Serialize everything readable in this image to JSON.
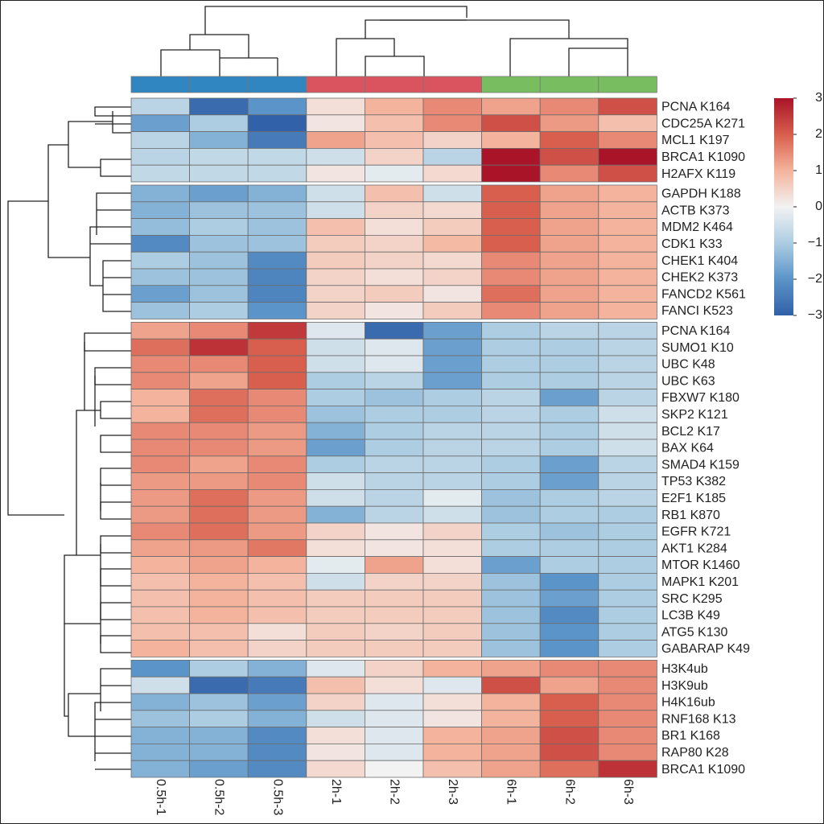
{
  "chart_data": {
    "type": "heatmap",
    "columns": [
      "0.5h-1",
      "0.5h-2",
      "0.5h-3",
      "2h-1",
      "2h-2",
      "2h-3",
      "6h-1",
      "6h-2",
      "6h-3"
    ],
    "column_colors": [
      "#2f86c0",
      "#2f86c0",
      "#2f86c0",
      "#d9545f",
      "#d9545f",
      "#d9545f",
      "#78bd5f",
      "#78bd5f",
      "#78bd5f"
    ],
    "rows": [
      "PCNA K164",
      "CDC25A K271",
      "MCL1 K197",
      "BRCA1 K1090",
      "H2AFX K119",
      "GAPDH K188",
      "ACTB K373",
      "MDM2 K464",
      "CDK1 K33",
      "CHEK1 K404",
      "CHEK2 K373",
      "FANCD2 K561",
      "FANCI K523",
      "PCNA K164",
      "SUMO1 K10",
      "UBC K48",
      "UBC K63",
      "FBXW7 K180",
      "SKP2 K121",
      "BCL2 K17",
      "BAX K64",
      "SMAD4 K159",
      "TP53 K382",
      "E2F1 K185",
      "RB1 K870",
      "EGFR K721",
      "AKT1 K284",
      "MTOR K1460",
      "MAPK1 K201",
      "SRC K295",
      "LC3B K49",
      "ATG5 K130",
      "GABARAP K49",
      "H3K4ub",
      "H3K9ub",
      "H4K16ub",
      "RNF168 K13",
      "BR1 K168",
      "RAP80 K28",
      "BRCA1 K1090"
    ],
    "values": [
      [
        -0.8,
        -2.8,
        -2,
        0.3,
        1,
        1.5,
        1.2,
        1.5,
        2.2
      ],
      [
        -1.8,
        -1,
        -3,
        0.2,
        0.8,
        1.5,
        2.2,
        1.3,
        0.8
      ],
      [
        -0.8,
        -1.5,
        -2.5,
        1.2,
        0.8,
        0.5,
        1,
        2,
        1.5
      ],
      [
        -0.8,
        -0.7,
        -0.7,
        -0.5,
        0.5,
        -0.8,
        3,
        2.2,
        3
      ],
      [
        -0.7,
        -0.7,
        -0.7,
        0.2,
        -0.2,
        0.4,
        3,
        1.5,
        2.2
      ],
      [
        -1.5,
        -1.8,
        -1.5,
        -0.5,
        0.8,
        -0.5,
        2,
        1.2,
        1
      ],
      [
        -1.5,
        -1.2,
        -1.2,
        -0.5,
        0.5,
        0.4,
        2,
        1.2,
        1
      ],
      [
        -1.3,
        -1,
        -1.2,
        0.8,
        0.3,
        0.6,
        2,
        1.2,
        1
      ],
      [
        -2.2,
        -1.2,
        -1.2,
        0.6,
        0.5,
        0.9,
        2,
        1.2,
        1
      ],
      [
        -1,
        -1.2,
        -2.2,
        0.6,
        0.5,
        0.4,
        1.5,
        1.2,
        1
      ],
      [
        -1.2,
        -1.2,
        -2.3,
        0.5,
        0.3,
        0.5,
        1.5,
        1.2,
        1
      ],
      [
        -1.8,
        -1.2,
        -2.3,
        0.5,
        0.6,
        0.2,
        1.8,
        1.2,
        1
      ],
      [
        -1.2,
        -1,
        -2,
        0.5,
        0.2,
        0.6,
        1.5,
        1.2,
        1
      ],
      [
        1.2,
        1.5,
        2.5,
        -0.3,
        -2.8,
        -1.8,
        -1,
        -0.8,
        -0.8
      ],
      [
        1.8,
        2.6,
        2,
        -0.5,
        -0.3,
        -1.8,
        -1,
        -1,
        -0.8
      ],
      [
        1.5,
        1.5,
        2,
        -0.5,
        -0.3,
        -1.8,
        -1,
        -1,
        -0.8
      ],
      [
        1.5,
        1.2,
        2,
        -1,
        -0.8,
        -1.8,
        -1,
        -1,
        -0.8
      ],
      [
        1,
        1.8,
        1.5,
        -1,
        -1.2,
        -1,
        -0.8,
        -1.8,
        -0.8
      ],
      [
        1,
        1.8,
        1.5,
        -1.2,
        -1,
        -1,
        -0.8,
        -1,
        -0.5
      ],
      [
        1.5,
        1.5,
        1.3,
        -1.5,
        -1,
        -0.8,
        -0.8,
        -1,
        -0.5
      ],
      [
        1.5,
        1.5,
        1.3,
        -1.8,
        -1,
        -0.8,
        -0.8,
        -1,
        -0.5
      ],
      [
        1.5,
        1.2,
        1.5,
        -1,
        -0.8,
        -0.8,
        -1,
        -1.8,
        -0.8
      ],
      [
        1.3,
        1.3,
        1.5,
        -0.5,
        -0.8,
        -0.8,
        -1,
        -1.8,
        -0.8
      ],
      [
        1.3,
        1.8,
        1.3,
        -0.5,
        -0.8,
        -0.2,
        -1.2,
        -1,
        -0.8
      ],
      [
        1.3,
        1.8,
        1.3,
        -1.5,
        -0.8,
        -0.5,
        -1.2,
        -1,
        -1
      ],
      [
        1.5,
        1.8,
        1.3,
        0.5,
        0.2,
        0.5,
        -1,
        -1.2,
        -1
      ],
      [
        1.2,
        1.3,
        1.7,
        0.3,
        0.2,
        0.3,
        -1,
        -1,
        -1
      ],
      [
        1,
        1.2,
        1,
        -0.2,
        1.2,
        0.3,
        -1.8,
        -1,
        -1
      ],
      [
        0.8,
        1,
        0.8,
        -0.5,
        0.5,
        0.5,
        -1.2,
        -2,
        -1
      ],
      [
        0.8,
        1,
        0.8,
        0.6,
        0.6,
        0.6,
        -1.2,
        -1.8,
        -1
      ],
      [
        0.8,
        1,
        0.8,
        0.6,
        0.6,
        0.6,
        -1.2,
        -2.2,
        -1
      ],
      [
        0.8,
        0.8,
        0.3,
        0.6,
        0.5,
        0.6,
        -1.2,
        -2,
        -1
      ],
      [
        1,
        0.8,
        0.5,
        0.6,
        0.6,
        0.6,
        -1.2,
        -2,
        -1
      ],
      [
        -2,
        -1,
        -1.5,
        -0.3,
        0.5,
        1,
        1.2,
        1.5,
        1.5
      ],
      [
        -0.5,
        -2.8,
        -2.5,
        0.8,
        0.3,
        -0.3,
        2.2,
        1.2,
        1.5
      ],
      [
        -1.5,
        -1.2,
        -1.8,
        0.5,
        -0.3,
        0.3,
        1,
        2,
        1.5
      ],
      [
        -1.2,
        -1,
        -1.5,
        -0.5,
        -0.3,
        0.2,
        1,
        2,
        1.5
      ],
      [
        -1.5,
        -1.5,
        -2.2,
        0.3,
        -0.3,
        1,
        1.2,
        2.2,
        1.5
      ],
      [
        -1.5,
        -1.5,
        -2.2,
        0.2,
        -0.3,
        1,
        1.2,
        2.2,
        1.5
      ],
      [
        -1.5,
        -1.8,
        -2.2,
        0.4,
        0,
        0.8,
        1.2,
        1.8,
        2.6
      ]
    ],
    "colorbar_lim": [
      -3,
      3
    ],
    "colorbar_ticks": [
      3,
      2,
      1,
      0,
      {
        "value": -1,
        "label": "−1"
      },
      {
        "value": -2,
        "label": "−2"
      },
      {
        "value": -3,
        "label": "−3"
      }
    ]
  }
}
